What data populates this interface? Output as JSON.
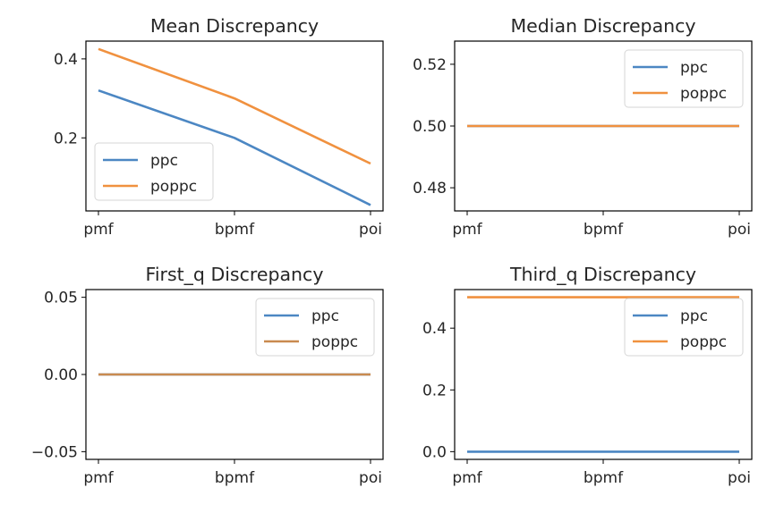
{
  "chart_data": [
    {
      "type": "line",
      "title": "Mean Discrepancy",
      "categories": [
        "pmf",
        "bpmf",
        "poi"
      ],
      "yticks": [
        0.2,
        0.4
      ],
      "ytick_labels": [
        "0.2",
        "0.4"
      ],
      "ylim": [
        0.015,
        0.445
      ],
      "legend_position": "lower-left",
      "series": [
        {
          "name": "ppc",
          "color": "#4c87c3",
          "values": [
            0.32,
            0.2,
            0.03
          ]
        },
        {
          "name": "poppc",
          "color": "#f0913f",
          "values": [
            0.425,
            0.3,
            0.135
          ]
        }
      ]
    },
    {
      "type": "line",
      "title": "Median Discrepancy",
      "categories": [
        "pmf",
        "bpmf",
        "poi"
      ],
      "yticks": [
        0.48,
        0.5,
        0.52
      ],
      "ytick_labels": [
        "0.48",
        "0.50",
        "0.52"
      ],
      "ylim": [
        0.4725,
        0.5275
      ],
      "legend_position": "upper-right",
      "series": [
        {
          "name": "ppc",
          "color": "#4c87c3",
          "values": [
            0.5,
            0.5,
            0.5
          ]
        },
        {
          "name": "poppc",
          "color": "#f0913f",
          "values": [
            0.5,
            0.5,
            0.5
          ]
        }
      ]
    },
    {
      "type": "line",
      "title": "First_q Discrepancy",
      "categories": [
        "pmf",
        "bpmf",
        "poi"
      ],
      "yticks": [
        -0.05,
        0.0,
        0.05
      ],
      "ytick_labels": [
        "−0.05",
        "0.00",
        "0.05"
      ],
      "ylim": [
        -0.055,
        0.055
      ],
      "legend_position": "upper-right",
      "series": [
        {
          "name": "ppc",
          "color": "#4c87c3",
          "values": [
            0.0,
            0.0,
            0.0
          ]
        },
        {
          "name": "poppc",
          "color": "#c98a4f",
          "values": [
            0.0,
            0.0,
            0.0
          ]
        }
      ]
    },
    {
      "type": "line",
      "title": "Third_q Discrepancy",
      "categories": [
        "pmf",
        "bpmf",
        "poi"
      ],
      "yticks": [
        0.0,
        0.2,
        0.4
      ],
      "ytick_labels": [
        "0.0",
        "0.2",
        "0.4"
      ],
      "ylim": [
        -0.025,
        0.525
      ],
      "legend_position": "upper-right",
      "series": [
        {
          "name": "ppc",
          "color": "#4c87c3",
          "values": [
            0.0,
            0.0,
            0.0
          ]
        },
        {
          "name": "poppc",
          "color": "#f0913f",
          "values": [
            0.5,
            0.5,
            0.5
          ]
        }
      ]
    }
  ]
}
